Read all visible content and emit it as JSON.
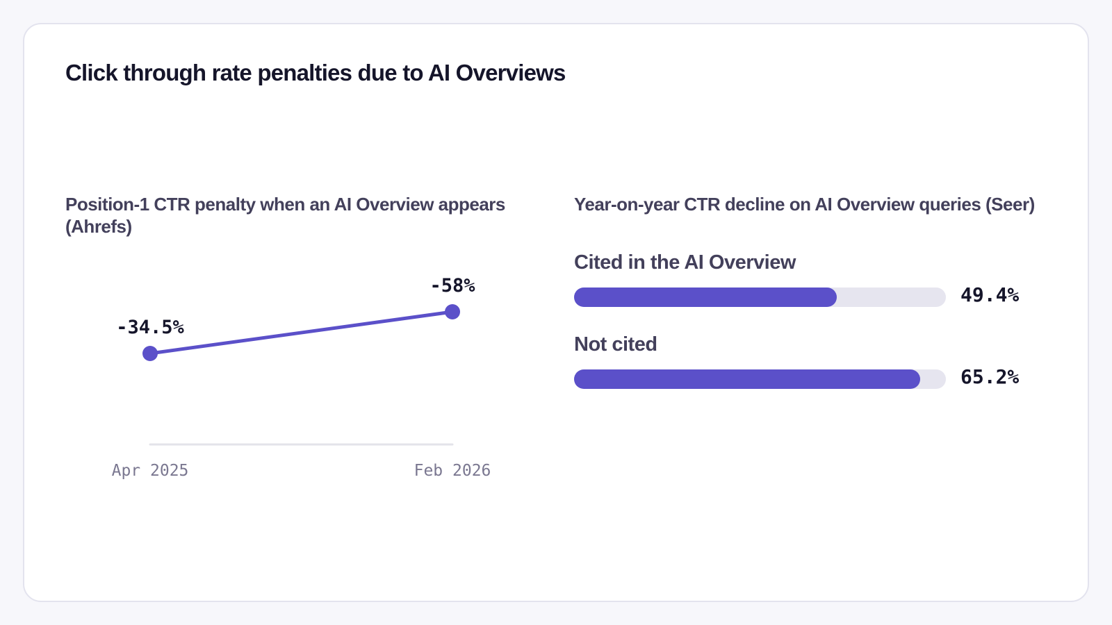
{
  "title": "Click through rate penalties due to AI Overviews",
  "colors": {
    "accent": "#5b50c9",
    "track": "#e6e5ef",
    "axis": "#e3e3ea",
    "text_dark": "#15152a",
    "text_muted": "#43405b"
  },
  "chart_data": [
    {
      "type": "line",
      "title": "Position-1 CTR penalty when an AI Overview appears (Ahrefs)",
      "x": [
        "Apr 2025",
        "Feb 2026"
      ],
      "series": [
        {
          "values": [
            -34.5,
            -58
          ],
          "labels": [
            "-34.5%",
            "-58%"
          ]
        }
      ],
      "y_direction": "penalty magnitude increases upward",
      "grid": false,
      "legend": "none"
    },
    {
      "type": "bar",
      "orientation": "horizontal",
      "title": "Year-on-year CTR decline on AI Overview queries (Seer)",
      "categories": [
        "Cited in the AI Overview",
        "Not cited"
      ],
      "values": [
        49.4,
        65.2
      ],
      "value_labels": [
        "49.4%",
        "65.2%"
      ],
      "xlim": [
        0,
        70
      ],
      "grid": false,
      "legend": "none"
    }
  ]
}
